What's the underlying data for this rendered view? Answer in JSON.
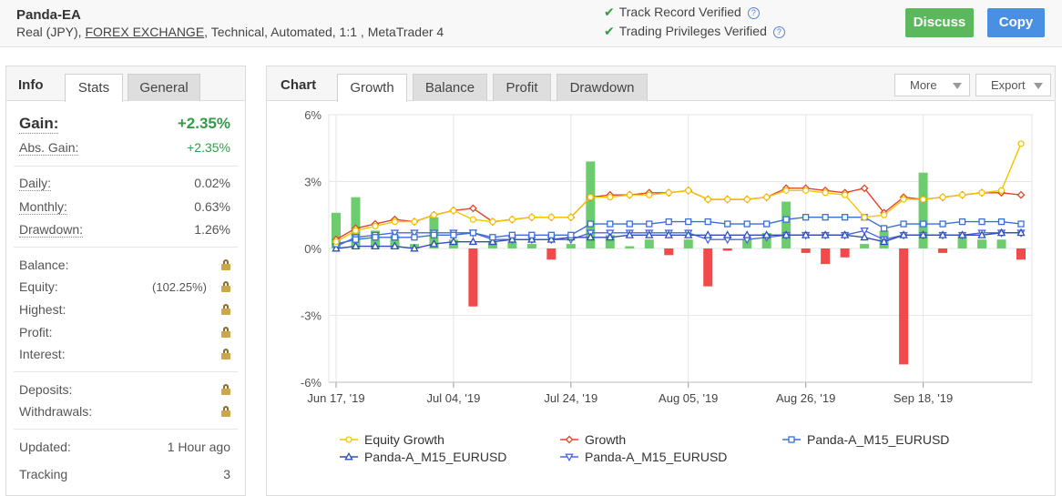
{
  "header": {
    "system_name": "Panda-EA",
    "desc_prefix": "Real (JPY), ",
    "desc_link": "FOREX EXCHANGE",
    "desc_suffix": ", Technical, Automated, 1:1 , MetaTrader 4",
    "track_record": "Track Record Verified",
    "trading_privileges": "Trading Privileges Verified",
    "discuss_label": "Discuss",
    "copy_label": "Copy"
  },
  "info": {
    "title": "Info",
    "tabs": [
      "Stats",
      "General"
    ],
    "gain_label": "Gain:",
    "gain_value": "+2.35%",
    "abs_gain_label": "Abs. Gain:",
    "abs_gain_value": "+2.35%",
    "daily_label": "Daily:",
    "daily_value": "0.02%",
    "monthly_label": "Monthly:",
    "monthly_value": "0.63%",
    "drawdown_label": "Drawdown:",
    "drawdown_value": "1.26%",
    "balance_label": "Balance:",
    "equity_label": "Equity:",
    "equity_pct": "(102.25%)",
    "highest_label": "Highest:",
    "profit_label": "Profit:",
    "interest_label": "Interest:",
    "deposits_label": "Deposits:",
    "withdrawals_label": "Withdrawals:",
    "updated_label": "Updated:",
    "updated_value": "1 Hour ago",
    "tracking_label": "Tracking",
    "tracking_value": "3"
  },
  "chart_panel": {
    "title": "Chart",
    "tabs": [
      "Growth",
      "Balance",
      "Profit",
      "Drawdown"
    ],
    "more_label": "More",
    "export_label": "Export"
  },
  "chart_data": {
    "type": "line",
    "title": "Growth",
    "ylabel": "",
    "xlabel": "",
    "ylim": [
      -6,
      6
    ],
    "y_ticks": [
      "6%",
      "3%",
      "0%",
      "-3%",
      "-6%"
    ],
    "x_tick_labels": [
      "Jun 17, '19",
      "Jul 04, '19",
      "Jul 24, '19",
      "Aug 05, '19",
      "Aug 26, '19",
      "Sep 18, '19"
    ],
    "x_tick_index": [
      0,
      6,
      12,
      18,
      24,
      30
    ],
    "n_points": 36,
    "bars": [
      1.6,
      2.3,
      0.8,
      0.6,
      0.2,
      1.4,
      0.4,
      -2.6,
      0.3,
      0.3,
      0.2,
      -0.5,
      0.2,
      3.9,
      0.6,
      0.1,
      0.4,
      -0.3,
      0.4,
      -1.7,
      -0.1,
      0.4,
      0.7,
      2.1,
      -0.2,
      -0.7,
      -0.4,
      0.2,
      0.8,
      -5.2,
      3.4,
      -0.2,
      0.6,
      0.4,
      0.4,
      -0.5
    ],
    "bar_colors": {
      "positive": "#6dcc6d",
      "negative": "#f24a4a"
    },
    "series": [
      {
        "name": "Equity Growth",
        "color": "#f5c400",
        "marker": "circle",
        "values": [
          0.3,
          0.8,
          1.0,
          1.2,
          1.2,
          1.5,
          1.7,
          1.3,
          1.2,
          1.3,
          1.4,
          1.4,
          1.4,
          2.3,
          2.3,
          2.4,
          2.4,
          2.5,
          2.6,
          2.2,
          2.2,
          2.2,
          2.3,
          2.6,
          2.6,
          2.5,
          2.4,
          1.4,
          1.5,
          2.2,
          2.2,
          2.3,
          2.4,
          2.5,
          2.6,
          4.7
        ]
      },
      {
        "name": "Growth",
        "color": "#e0452b",
        "marker": "diamond",
        "values": [
          0.4,
          0.9,
          1.1,
          1.3,
          1.2,
          1.5,
          1.7,
          1.8,
          1.2,
          1.3,
          1.4,
          1.4,
          1.4,
          2.3,
          2.4,
          2.4,
          2.5,
          2.5,
          2.6,
          2.2,
          2.2,
          2.2,
          2.3,
          2.7,
          2.7,
          2.6,
          2.5,
          2.7,
          1.6,
          2.3,
          2.2,
          2.3,
          2.4,
          2.5,
          2.5,
          2.4
        ]
      },
      {
        "name": "Panda-A_M15_EURUSD",
        "color": "#3b6fd8",
        "marker": "square",
        "values": [
          0.2,
          0.4,
          0.5,
          0.5,
          0.5,
          0.6,
          0.6,
          0.7,
          0.5,
          0.6,
          0.6,
          0.6,
          0.6,
          1.1,
          1.1,
          1.1,
          1.1,
          1.2,
          1.2,
          1.2,
          1.1,
          1.1,
          1.1,
          1.3,
          1.4,
          1.4,
          1.4,
          1.4,
          0.9,
          1.1,
          1.1,
          1.1,
          1.2,
          1.2,
          1.2,
          1.1
        ]
      },
      {
        "name": "Panda-A_M15_EURUSD",
        "color": "#2e4fb8",
        "marker": "triangle",
        "values": [
          0.0,
          0.1,
          0.1,
          0.1,
          0.0,
          0.2,
          0.3,
          0.3,
          0.3,
          0.4,
          0.4,
          0.4,
          0.5,
          0.5,
          0.5,
          0.6,
          0.6,
          0.6,
          0.6,
          0.6,
          0.6,
          0.6,
          0.6,
          0.6,
          0.6,
          0.6,
          0.6,
          0.5,
          0.3,
          0.6,
          0.6,
          0.6,
          0.6,
          0.6,
          0.7,
          0.7
        ]
      },
      {
        "name": "Panda-A_M15_EURUSD",
        "color": "#4a68e0",
        "marker": "triangle-down",
        "values": [
          0.1,
          0.5,
          0.6,
          0.7,
          0.7,
          0.7,
          0.7,
          0.7,
          0.4,
          0.4,
          0.4,
          0.4,
          0.4,
          0.7,
          0.7,
          0.7,
          0.7,
          0.7,
          0.7,
          0.4,
          0.4,
          0.4,
          0.5,
          0.6,
          0.6,
          0.6,
          0.6,
          0.8,
          0.4,
          0.6,
          0.6,
          0.6,
          0.6,
          0.7,
          0.7,
          0.7
        ]
      }
    ]
  }
}
